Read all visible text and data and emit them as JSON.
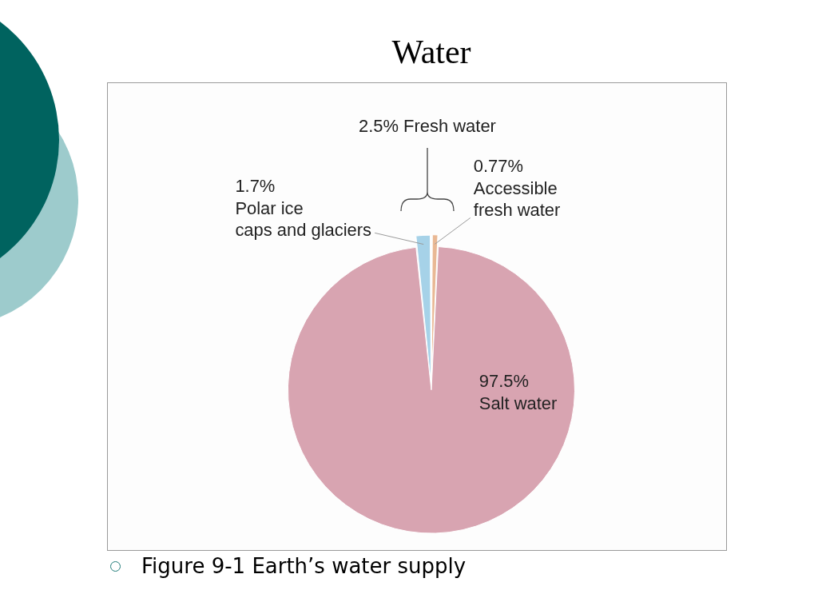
{
  "chart_data": {
    "type": "pie",
    "title": "Water",
    "categories": [
      "Polar ice\ncaps and glaciers",
      "Accessible\nfresh water",
      "Salt water"
    ],
    "values": [
      1.7,
      0.77,
      97.5
    ],
    "colors": [
      "#a6d2e8",
      "#e9b894",
      "#d8a4b1"
    ],
    "value_labels": [
      "1.7%",
      "0.77%",
      "97.5%"
    ],
    "annotations": [
      "2.5% Fresh water",
      "Figure 9-1 Earth’s water supply"
    ],
    "legend": false
  }
}
